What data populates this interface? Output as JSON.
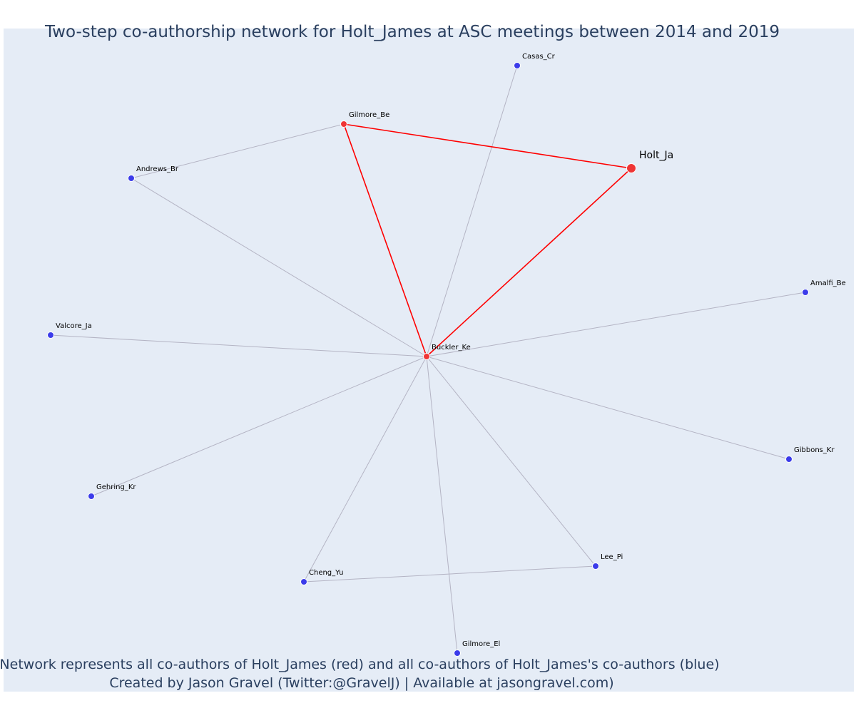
{
  "title": "Two-step co-authorship network for Holt_James at ASC meetings between 2014 and 2019",
  "caption_line1": "Network represents all co-authors of Holt_James (red) and all co-authors of Holt_James's co-authors (blue)",
  "caption_line2": "Created by Jason Gravel (Twitter:@GravelJ) | Available at jasongravel.com)",
  "colors": {
    "plot_background": "#e5ecf6",
    "red_node": "#ef3535",
    "blue_node": "#3b3bea",
    "red_edge": "#ff0000",
    "grey_edge": "#b4b4c4",
    "text": "#2a3f5f"
  },
  "nodes": [
    {
      "id": "Holt_Ja",
      "label": "Holt_Ja",
      "group": "focal"
    },
    {
      "id": "Gilmore_Be",
      "label": "Gilmore_Be",
      "group": "coauthor"
    },
    {
      "id": "Buckler_Ke",
      "label": "Buckler_Ke",
      "group": "coauthor"
    },
    {
      "id": "Casas_Cr",
      "label": "Casas_Cr",
      "group": "second"
    },
    {
      "id": "Andrews_Br",
      "label": "Andrews_Br",
      "group": "second"
    },
    {
      "id": "Amalfi_Be",
      "label": "Amalfi_Be",
      "group": "second"
    },
    {
      "id": "Valcore_Ja",
      "label": "Valcore_Ja",
      "group": "second"
    },
    {
      "id": "Gibbons_Kr",
      "label": "Gibbons_Kr",
      "group": "second"
    },
    {
      "id": "Gehring_Kr",
      "label": "Gehring_Kr",
      "group": "second"
    },
    {
      "id": "Lee_Pi",
      "label": "Lee_Pi",
      "group": "second"
    },
    {
      "id": "Cheng_Yu",
      "label": "Cheng_Yu",
      "group": "second"
    },
    {
      "id": "Gilmore_El",
      "label": "Gilmore_El",
      "group": "second"
    }
  ],
  "edges": [
    {
      "source": "Gilmore_Be",
      "target": "Holt_Ja",
      "kind": "red"
    },
    {
      "source": "Gilmore_Be",
      "target": "Buckler_Ke",
      "kind": "red"
    },
    {
      "source": "Buckler_Ke",
      "target": "Holt_Ja",
      "kind": "red"
    },
    {
      "source": "Andrews_Br",
      "target": "Gilmore_Be",
      "kind": "grey"
    },
    {
      "source": "Andrews_Br",
      "target": "Buckler_Ke",
      "kind": "grey"
    },
    {
      "source": "Casas_Cr",
      "target": "Buckler_Ke",
      "kind": "grey"
    },
    {
      "source": "Amalfi_Be",
      "target": "Buckler_Ke",
      "kind": "grey"
    },
    {
      "source": "Valcore_Ja",
      "target": "Buckler_Ke",
      "kind": "grey"
    },
    {
      "source": "Gibbons_Kr",
      "target": "Buckler_Ke",
      "kind": "grey"
    },
    {
      "source": "Gehring_Kr",
      "target": "Buckler_Ke",
      "kind": "grey"
    },
    {
      "source": "Lee_Pi",
      "target": "Buckler_Ke",
      "kind": "grey"
    },
    {
      "source": "Cheng_Yu",
      "target": "Buckler_Ke",
      "kind": "grey"
    },
    {
      "source": "Gilmore_El",
      "target": "Buckler_Ke",
      "kind": "grey"
    },
    {
      "source": "Cheng_Yu",
      "target": "Lee_Pi",
      "kind": "grey"
    }
  ]
}
